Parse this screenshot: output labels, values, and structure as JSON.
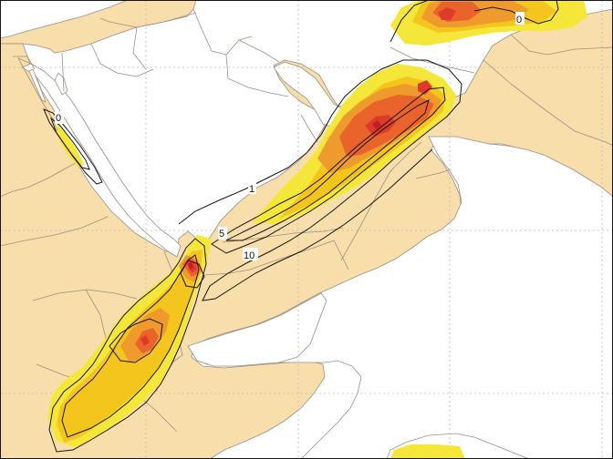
{
  "map": {
    "colors": {
      "sea": "#ffffff",
      "land": "#f8deaa",
      "border": "#9a8f84",
      "coast": "#9a8f84",
      "grid": "#b9b9b9",
      "contour": "#151515",
      "shade_light": "#f5e73a",
      "shade_yellow": "#f3c51d",
      "shade_orange": "#ef9a2c",
      "shade_dark_orange": "#e9632a",
      "shade_red": "#dd3a2c",
      "shade_max": "#c41e1e"
    },
    "contour_labels": [
      "0",
      "0",
      "1",
      "5",
      "10"
    ]
  }
}
